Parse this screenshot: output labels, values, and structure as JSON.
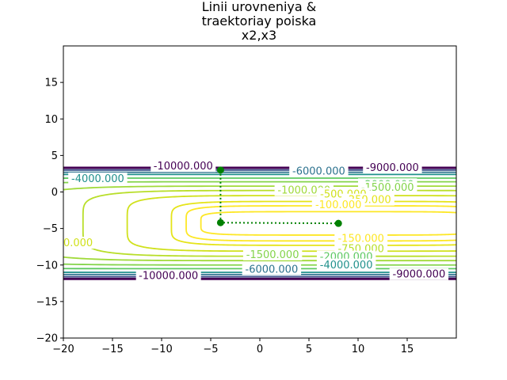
{
  "chart_data": {
    "type": "contour",
    "title_lines": [
      "Linii urovneniya &",
      "traektoriay poiska",
      "x2,x3"
    ],
    "xlim": [
      -20,
      20
    ],
    "ylim": [
      -20,
      20
    ],
    "xticks": [
      -20,
      -15,
      -10,
      -5,
      0,
      5,
      10,
      15
    ],
    "yticks": [
      -20,
      -15,
      -10,
      -5,
      0,
      5,
      10,
      15
    ],
    "xlabel": "",
    "ylabel": "",
    "grid": false,
    "contour_center": [
      8.0,
      -4.3
    ],
    "contour_levels": [
      {
        "level": -100,
        "color": "#fde725",
        "half_width": 14.0,
        "half_height": 1.6
      },
      {
        "level": -150,
        "color": "#fde725",
        "half_width": 15.5,
        "half_height": 2.4
      },
      {
        "level": -250,
        "color": "#e5e419",
        "half_width": 17.0,
        "half_height": 3.0
      },
      {
        "level": -500,
        "color": "#d0e11c",
        "half_width": 21.5,
        "half_height": 3.8
      },
      {
        "level": -750,
        "color": "#b8de29",
        "half_width": 26.0,
        "half_height": 4.5
      },
      {
        "level": -1000,
        "color": "#a0da39",
        "half_width": 32.0,
        "half_height": 5.1
      },
      {
        "level": -1500,
        "color": "#84d44b",
        "half_width": 40.0,
        "half_height": 5.7
      },
      {
        "level": -2000,
        "color": "#5ec962",
        "half_width": 60.0,
        "half_height": 6.2
      },
      {
        "level": -4000,
        "color": "#21918c",
        "half_width": 90.0,
        "half_height": 6.7
      },
      {
        "level": -6000,
        "color": "#2c728e",
        "half_width": 120.0,
        "half_height": 7.0
      },
      {
        "level": -9000,
        "color": "#3b528b",
        "half_width": 160.0,
        "half_height": 7.3
      },
      {
        "level": -10000,
        "color": "#440154",
        "half_width": 200.0,
        "half_height": 7.6
      }
    ],
    "contour_labels": [
      {
        "text": "-10000.000",
        "x": -7.8,
        "y": 3.5,
        "color": "#440154"
      },
      {
        "text": "-6000.000",
        "x": 6.0,
        "y": 2.8,
        "color": "#2c728e"
      },
      {
        "text": "-9000.000",
        "x": 13.5,
        "y": 3.3,
        "color": "#440154"
      },
      {
        "text": "-4000.000",
        "x": -16.5,
        "y": 1.8,
        "color": "#21918c"
      },
      {
        "text": "-1000.000",
        "x": 4.5,
        "y": 0.2,
        "color": "#a0da39"
      },
      {
        "text": "-2000.000",
        "x": 13.0,
        "y": 1.0,
        "color": "#5ec962"
      },
      {
        "text": "-1500.000",
        "x": 13.0,
        "y": 0.6,
        "color": "#84d44b"
      },
      {
        "text": "-500.000",
        "x": 8.5,
        "y": -0.3,
        "color": "#d0e11c"
      },
      {
        "text": "-250.000",
        "x": 11.0,
        "y": -1.1,
        "color": "#e5e419"
      },
      {
        "text": "-100.000",
        "x": 8.0,
        "y": -1.8,
        "color": "#fde725"
      },
      {
        "text": "-150.000",
        "x": 10.3,
        "y": -6.4,
        "color": "#fde725"
      },
      {
        "text": "-750.000",
        "x": 10.3,
        "y": -7.8,
        "color": "#b8de29"
      },
      {
        "text": "-1500.000",
        "x": 1.3,
        "y": -8.6,
        "color": "#84d44b"
      },
      {
        "text": "-2000.000",
        "x": 8.8,
        "y": -8.9,
        "color": "#5ec962"
      },
      {
        "text": "-4000.000",
        "x": 8.8,
        "y": -10.0,
        "color": "#21918c"
      },
      {
        "text": "-6000.000",
        "x": 1.2,
        "y": -10.6,
        "color": "#2c728e"
      },
      {
        "text": "-10000.000",
        "x": -9.3,
        "y": -11.5,
        "color": "#440154"
      },
      {
        "text": "-9000.000",
        "x": 16.2,
        "y": -11.3,
        "color": "#440154"
      },
      {
        "text": "0.000",
        "x": -18.5,
        "y": -7.0,
        "color": "#d0e11c"
      }
    ],
    "search_path": {
      "color": "#008000",
      "points": [
        [
          -4.0,
          3.0
        ],
        [
          -4.0,
          -4.2
        ],
        [
          8.0,
          -4.3
        ]
      ]
    }
  }
}
